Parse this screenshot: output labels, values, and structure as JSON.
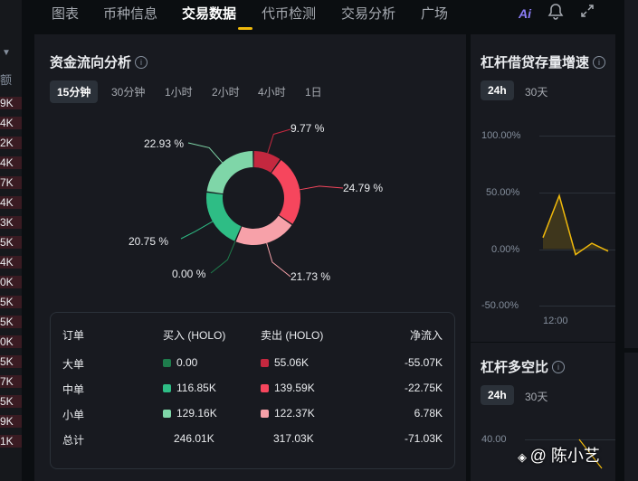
{
  "left_sidebar": {
    "header": "额",
    "values": [
      "9K",
      "4K",
      "2K",
      "4K",
      "7K",
      "4K",
      "3K",
      "5K",
      "4K",
      "0K",
      "5K",
      "5K",
      "0K",
      "5K",
      "7K",
      "5K",
      "9K",
      "1K"
    ]
  },
  "tabs": [
    {
      "label": "图表",
      "active": false
    },
    {
      "label": "币种信息",
      "active": false
    },
    {
      "label": "交易数据",
      "active": true
    },
    {
      "label": "代币检测",
      "active": false
    },
    {
      "label": "交易分析",
      "active": false
    },
    {
      "label": "广场",
      "active": false
    }
  ],
  "toolbar": {
    "ai_label": "Ai",
    "accent_color": "#f0b90b"
  },
  "fund_flow": {
    "title": "资金流向分析",
    "periods": [
      {
        "label": "15分钟",
        "active": true
      },
      {
        "label": "30分钟",
        "active": false
      },
      {
        "label": "1小时",
        "active": false
      },
      {
        "label": "2小时",
        "active": false
      },
      {
        "label": "4小时",
        "active": false
      },
      {
        "label": "1日",
        "active": false
      }
    ],
    "donut": {
      "segments": [
        {
          "label": "9.77 %",
          "value": 9.77,
          "color": "#c4283f"
        },
        {
          "label": "24.79 %",
          "value": 24.79,
          "color": "#f6465d"
        },
        {
          "label": "21.73 %",
          "value": 21.73,
          "color": "#f7a1a9"
        },
        {
          "label": "0.00 %",
          "value": 0.0,
          "color": "#1e7c4c"
        },
        {
          "label": "20.75 %",
          "value": 20.75,
          "color": "#2ebd85"
        },
        {
          "label": "22.93 %",
          "value": 22.93,
          "color": "#7fd6a8"
        }
      ]
    },
    "table": {
      "headers": [
        "订单",
        "买入 (HOLO)",
        "卖出 (HOLO)",
        "净流入"
      ],
      "rows": [
        {
          "name": "大单",
          "buy": "0.00",
          "sell": "55.06K",
          "net": "-55.07K",
          "buy_color": "#1e7c4c",
          "sell_color": "#c4283f"
        },
        {
          "name": "中单",
          "buy": "116.85K",
          "sell": "139.59K",
          "net": "-22.75K",
          "buy_color": "#2ebd85",
          "sell_color": "#f6465d"
        },
        {
          "name": "小单",
          "buy": "129.16K",
          "sell": "122.37K",
          "net": "6.78K",
          "buy_color": "#7fd6a8",
          "sell_color": "#f7a1a9"
        },
        {
          "name": "总计",
          "buy": "246.01K",
          "sell": "317.03K",
          "net": "-71.03K"
        }
      ]
    }
  },
  "margin_growth": {
    "title": "杠杆借贷存量增速",
    "periods": [
      {
        "label": "24h",
        "active": true
      },
      {
        "label": "30天",
        "active": false
      }
    ],
    "chart_data": {
      "type": "line",
      "yticks": [
        "100.00%",
        "50.00%",
        "0.00%",
        "-50.00%"
      ],
      "ylim": [
        -50,
        100
      ],
      "xlabel_tick": "12:00",
      "values": [
        10,
        47,
        -5,
        5,
        -2
      ],
      "color": "#f0b90b"
    }
  },
  "long_short": {
    "title": "杠杆多空比",
    "periods": [
      {
        "label": "24h",
        "active": true
      },
      {
        "label": "30天",
        "active": false
      }
    ],
    "ytick_top": "40.00"
  },
  "watermark": "@ 陈小艺"
}
